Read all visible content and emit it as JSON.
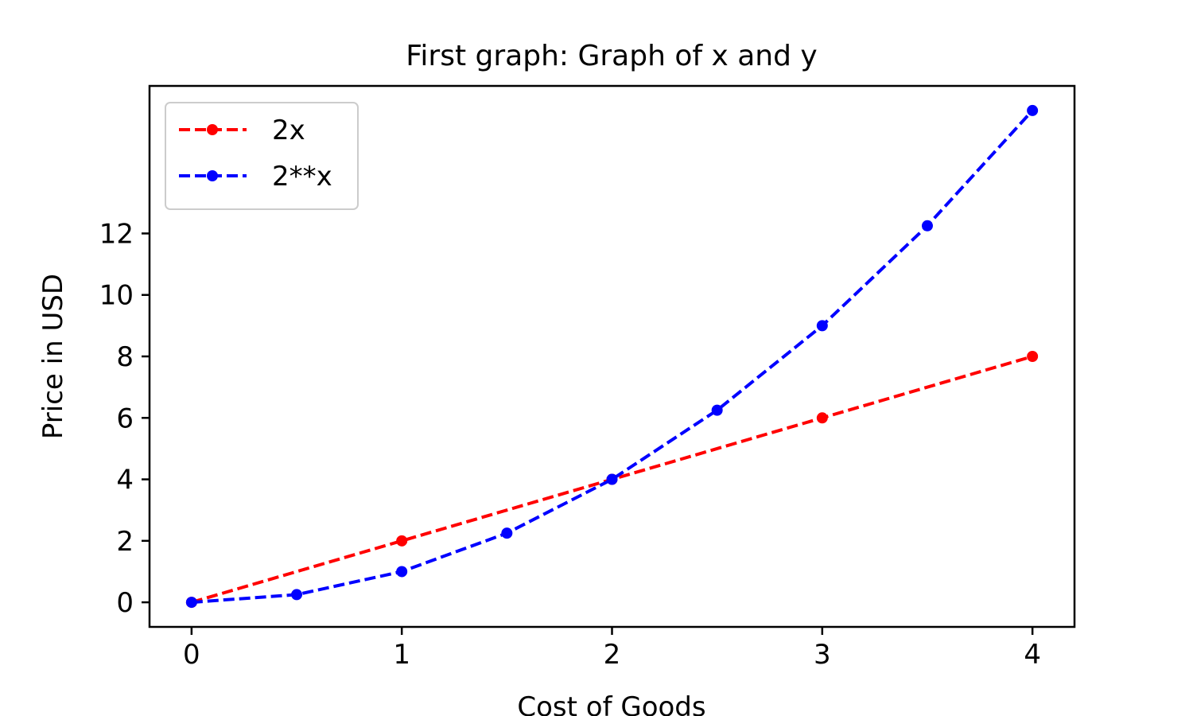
{
  "chart_data": {
    "type": "line",
    "title": "First graph: Graph of x and y",
    "xlabel": "Cost of Goods",
    "ylabel": "Price in USD",
    "xlim": [
      -0.2,
      4.2
    ],
    "ylim": [
      -0.8,
      16.8
    ],
    "xticks": [
      0,
      1,
      2,
      3,
      4
    ],
    "yticks": [
      0,
      2,
      4,
      6,
      8,
      10,
      12
    ],
    "grid": false,
    "legend_position": "top-left",
    "series": [
      {
        "name": "2x",
        "color": "#ff0000",
        "line_style": "dashed",
        "marker": "circle",
        "x": [
          0,
          1,
          2,
          3,
          4
        ],
        "y": [
          0,
          2,
          4,
          6,
          8
        ]
      },
      {
        "name": "2**x",
        "color": "#0000ff",
        "line_style": "dashed",
        "marker": "circle",
        "x": [
          0,
          0.5,
          1,
          1.5,
          2,
          2.5,
          3,
          3.5,
          4
        ],
        "y": [
          0,
          0.25,
          1,
          2.25,
          4,
          6.25,
          9,
          12.25,
          16
        ]
      }
    ]
  }
}
